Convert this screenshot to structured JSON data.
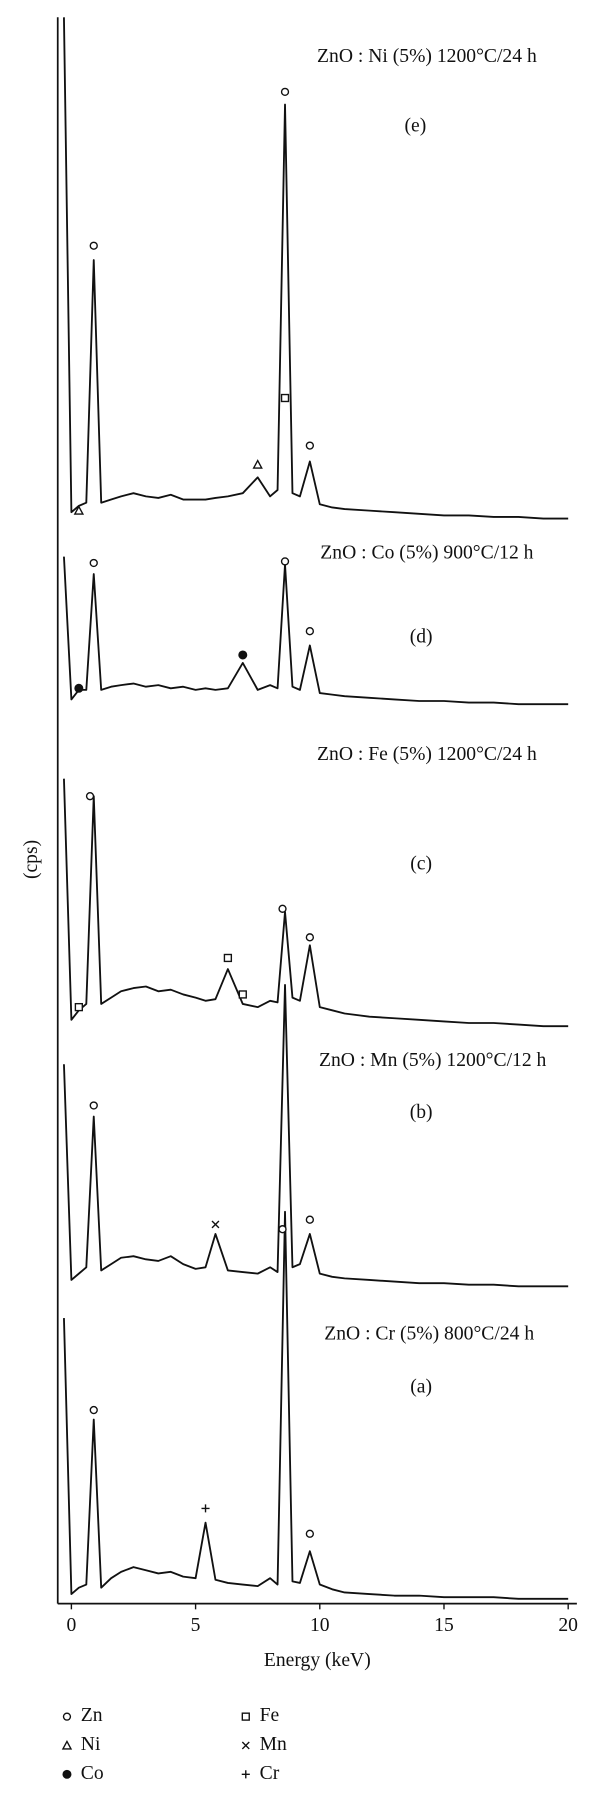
{
  "chart_data": {
    "type": "line",
    "x_label": "Energy (keV)",
    "y_label": "(cps)",
    "xlim": [
      -0.55,
      20.35
    ],
    "xticks": [
      0,
      5,
      10,
      15,
      20
    ],
    "ylim": [
      0,
      100
    ],
    "x": [
      -0.3,
      0,
      0.3,
      0.6,
      0.9,
      1.2,
      1.6,
      2,
      2.5,
      3,
      3.5,
      4,
      4.5,
      5,
      5.4,
      5.8,
      6.3,
      6.9,
      7.5,
      8,
      8.3,
      8.6,
      8.9,
      9.2,
      9.6,
      10,
      10.5,
      11,
      12,
      13,
      14,
      15,
      16,
      17,
      18,
      19,
      20
    ],
    "series": [
      {
        "name": "ZnO : Cr (5%) 800°C/24 h",
        "tag": "(a)",
        "color": "#111111",
        "values": [
          18,
          0.6,
          1.0,
          1.2,
          11.6,
          1.0,
          1.6,
          2.0,
          2.3,
          2.1,
          1.9,
          2.0,
          1.7,
          1.6,
          5.1,
          1.5,
          1.3,
          1.2,
          1.1,
          1.6,
          1.2,
          24.7,
          1.4,
          1.3,
          3.3,
          1.2,
          0.9,
          0.7,
          0.6,
          0.5,
          0.5,
          0.4,
          0.4,
          0.4,
          0.3,
          0.3,
          0.3
        ],
        "peak_markers": [
          {
            "x": 0.9,
            "y": 12.2,
            "symbol": "circle"
          },
          {
            "x": 5.4,
            "y": 6,
            "symbol": "plus"
          },
          {
            "x": 9.6,
            "y": 4.4,
            "symbol": "circle"
          }
        ]
      },
      {
        "name": "ZnO : Mn (5%) 1200°C/12 h",
        "tag": "(b)",
        "color": "#111111",
        "values": [
          34,
          20.4,
          20.8,
          21.2,
          30.7,
          21.0,
          21.4,
          21.8,
          21.9,
          21.7,
          21.6,
          21.9,
          21.4,
          21.1,
          21.2,
          23.3,
          21.0,
          20.9,
          20.8,
          21.2,
          20.9,
          39.0,
          21.2,
          21.4,
          23.3,
          20.8,
          20.6,
          20.5,
          20.4,
          20.3,
          20.2,
          20.2,
          20.1,
          20.1,
          20.0,
          20.0,
          20.0
        ],
        "peak_markers": [
          {
            "x": 0.9,
            "y": 31.4,
            "symbol": "circle"
          },
          {
            "x": 5.8,
            "y": 23.9,
            "symbol": "cross"
          },
          {
            "x": 8.5,
            "y": 23.6,
            "symbol": "circle"
          },
          {
            "x": 9.6,
            "y": 24.2,
            "symbol": "circle"
          }
        ]
      },
      {
        "name": "ZnO : Fe (5%) 1200°C/24 h",
        "tag": "(c)",
        "color": "#111111",
        "values": [
          52,
          36.8,
          37.4,
          37.8,
          50.9,
          37.8,
          38.2,
          38.6,
          38.8,
          38.9,
          38.6,
          38.7,
          38.4,
          38.2,
          38.0,
          38.1,
          40.0,
          37.8,
          37.6,
          38.0,
          37.9,
          43.6,
          38.2,
          38.0,
          41.5,
          37.6,
          37.4,
          37.2,
          37.0,
          36.9,
          36.8,
          36.7,
          36.6,
          36.6,
          36.5,
          36.4,
          36.4
        ],
        "peak_markers": [
          {
            "x": 0.3,
            "y": 37.6,
            "symbol": "square"
          },
          {
            "x": 0.75,
            "y": 50.9,
            "symbol": "circle"
          },
          {
            "x": 6.3,
            "y": 40.7,
            "symbol": "square"
          },
          {
            "x": 6.9,
            "y": 38.4,
            "symbol": "square"
          },
          {
            "x": 8.5,
            "y": 43.8,
            "symbol": "circle"
          },
          {
            "x": 9.6,
            "y": 42,
            "symbol": "circle"
          }
        ]
      },
      {
        "name": "ZnO : Co (5%) 900°C/12 h",
        "tag": "(d)",
        "color": "#111111",
        "values": [
          66,
          57.0,
          57.6,
          57.6,
          64.9,
          57.6,
          57.8,
          57.9,
          58.0,
          57.8,
          57.9,
          57.7,
          57.8,
          57.6,
          57.7,
          57.6,
          57.7,
          59.3,
          57.6,
          57.9,
          57.7,
          65.5,
          57.8,
          57.6,
          60.4,
          57.4,
          57.3,
          57.2,
          57.1,
          57.0,
          56.9,
          56.9,
          56.8,
          56.8,
          56.7,
          56.7,
          56.7
        ],
        "peak_markers": [
          {
            "x": 0.3,
            "y": 57.7,
            "symbol": "filled-circle"
          },
          {
            "x": 0.9,
            "y": 65.6,
            "symbol": "circle"
          },
          {
            "x": 6.9,
            "y": 59.8,
            "symbol": "filled-circle"
          },
          {
            "x": 8.6,
            "y": 65.7,
            "symbol": "circle"
          },
          {
            "x": 9.6,
            "y": 61.3,
            "symbol": "circle"
          }
        ]
      },
      {
        "name": "ZnO : Ni (5%) 1200°C/24 h",
        "tag": "(e)",
        "color": "#111111",
        "values": [
          100,
          68.8,
          69.2,
          69.4,
          84.7,
          69.4,
          69.6,
          69.8,
          70.0,
          69.8,
          69.7,
          69.9,
          69.6,
          69.6,
          69.6,
          69.7,
          69.8,
          70.0,
          71.0,
          69.8,
          70.2,
          94.5,
          70.0,
          69.8,
          72.0,
          69.3,
          69.1,
          69.0,
          68.9,
          68.8,
          68.7,
          68.6,
          68.6,
          68.5,
          68.5,
          68.4,
          68.4
        ],
        "peak_markers": [
          {
            "x": 0.3,
            "y": 68.9,
            "symbol": "triangle"
          },
          {
            "x": 0.9,
            "y": 85.6,
            "symbol": "circle"
          },
          {
            "x": 7.5,
            "y": 71.8,
            "symbol": "triangle"
          },
          {
            "x": 8.6,
            "y": 76,
            "symbol": "square"
          },
          {
            "x": 8.6,
            "y": 95.3,
            "symbol": "circle"
          },
          {
            "x": 9.6,
            "y": 73,
            "symbol": "circle"
          }
        ]
      }
    ],
    "legend": [
      {
        "label": "Zn",
        "symbol": "circle"
      },
      {
        "label": "Ni",
        "symbol": "triangle"
      },
      {
        "label": "Co",
        "symbol": "filled-circle"
      },
      {
        "label": "Fe",
        "symbol": "square"
      },
      {
        "label": "Mn",
        "symbol": "cross"
      },
      {
        "label": "Cr",
        "symbol": "plus"
      }
    ]
  }
}
